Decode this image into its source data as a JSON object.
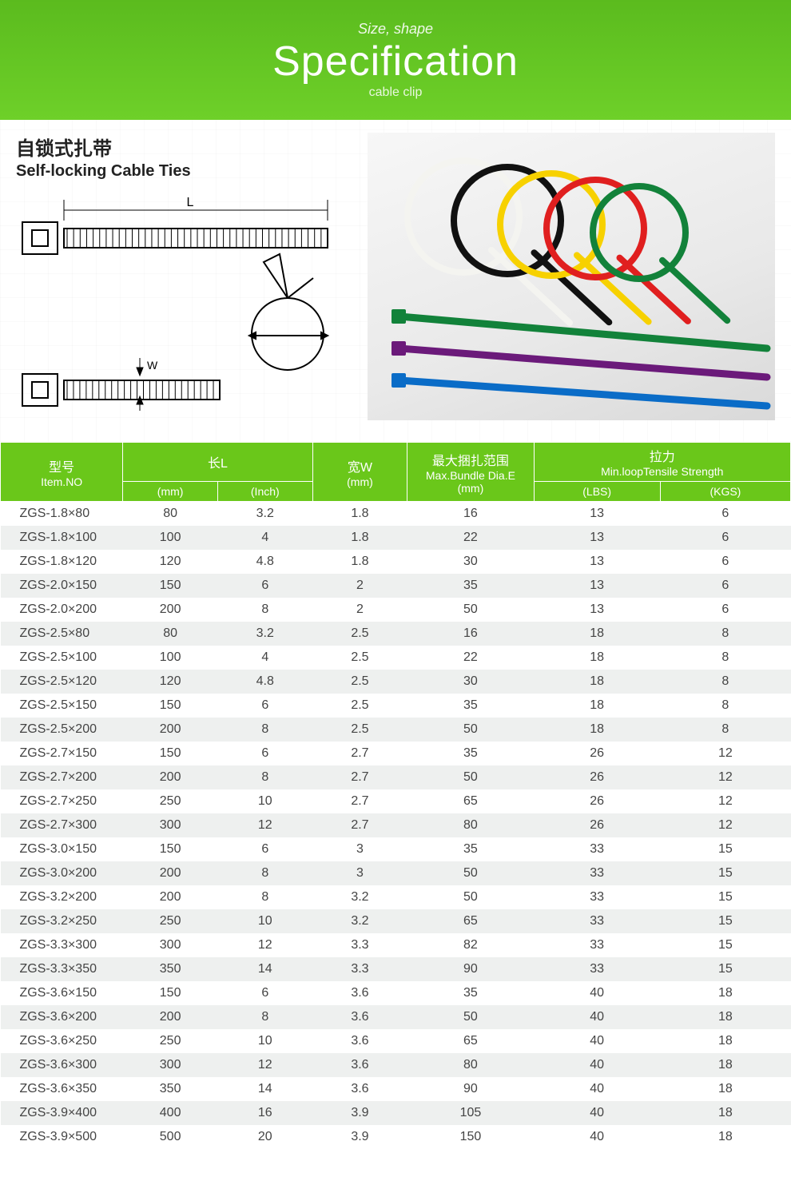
{
  "banner": {
    "eyebrow": "Size, shape",
    "title": "Specification",
    "sub": "cable clip",
    "bg_from": "#5bbb1e",
    "bg_to": "#6ed029",
    "text_color": "#ffffff"
  },
  "product": {
    "title_cn": "自锁式扎带",
    "title_en": "Self-locking Cable Ties",
    "diagram_labels": {
      "length": "L",
      "width": "W"
    },
    "photo_tie_colors": [
      "#f4f4f0",
      "#111111",
      "#f7d100",
      "#e01f1f",
      "#12823a",
      "#6b1a7a",
      "#0a6cc7"
    ]
  },
  "table": {
    "header_color": "#6ac71a",
    "header_text_color": "#ffffff",
    "row_alt_bg": "#eef0ef",
    "row_bg": "#ffffff",
    "text_color": "#444444",
    "font_size_pt": 12,
    "headers": {
      "item": {
        "cn": "型号",
        "en": "Item.NO"
      },
      "length": {
        "cn": "长L",
        "en": ""
      },
      "l_mm": {
        "cn": "",
        "en": "(mm)"
      },
      "l_inch": {
        "cn": "",
        "en": "(Inch)"
      },
      "width": {
        "cn": "宽W",
        "en": "(mm)"
      },
      "dia": {
        "cn": "最大捆扎范围",
        "en": "Max.Bundle Dia.E",
        "unit": "(mm)"
      },
      "tensile": {
        "cn": "拉力",
        "en": "Min.loopTensile Strength"
      },
      "lbs": {
        "cn": "",
        "en": "(LBS)"
      },
      "kgs": {
        "cn": "",
        "en": "(KGS)"
      }
    },
    "columns": [
      "item_no",
      "l_mm",
      "l_inch",
      "w_mm",
      "dia_mm",
      "lbs",
      "kgs"
    ],
    "rows": [
      [
        "ZGS-1.8×80",
        "80",
        "3.2",
        "1.8",
        "16",
        "13",
        "6"
      ],
      [
        "ZGS-1.8×100",
        "100",
        "4",
        "1.8",
        "22",
        "13",
        "6"
      ],
      [
        "ZGS-1.8×120",
        "120",
        "4.8",
        "1.8",
        "30",
        "13",
        "6"
      ],
      [
        "ZGS-2.0×150",
        "150",
        "6",
        "2",
        "35",
        "13",
        "6"
      ],
      [
        "ZGS-2.0×200",
        "200",
        "8",
        "2",
        "50",
        "13",
        "6"
      ],
      [
        "ZGS-2.5×80",
        "80",
        "3.2",
        "2.5",
        "16",
        "18",
        "8"
      ],
      [
        "ZGS-2.5×100",
        "100",
        "4",
        "2.5",
        "22",
        "18",
        "8"
      ],
      [
        "ZGS-2.5×120",
        "120",
        "4.8",
        "2.5",
        "30",
        "18",
        "8"
      ],
      [
        "ZGS-2.5×150",
        "150",
        "6",
        "2.5",
        "35",
        "18",
        "8"
      ],
      [
        "ZGS-2.5×200",
        "200",
        "8",
        "2.5",
        "50",
        "18",
        "8"
      ],
      [
        "ZGS-2.7×150",
        "150",
        "6",
        "2.7",
        "35",
        "26",
        "12"
      ],
      [
        "ZGS-2.7×200",
        "200",
        "8",
        "2.7",
        "50",
        "26",
        "12"
      ],
      [
        "ZGS-2.7×250",
        "250",
        "10",
        "2.7",
        "65",
        "26",
        "12"
      ],
      [
        "ZGS-2.7×300",
        "300",
        "12",
        "2.7",
        "80",
        "26",
        "12"
      ],
      [
        "ZGS-3.0×150",
        "150",
        "6",
        "3",
        "35",
        "33",
        "15"
      ],
      [
        "ZGS-3.0×200",
        "200",
        "8",
        "3",
        "50",
        "33",
        "15"
      ],
      [
        "ZGS-3.2×200",
        "200",
        "8",
        "3.2",
        "50",
        "33",
        "15"
      ],
      [
        "ZGS-3.2×250",
        "250",
        "10",
        "3.2",
        "65",
        "33",
        "15"
      ],
      [
        "ZGS-3.3×300",
        "300",
        "12",
        "3.3",
        "82",
        "33",
        "15"
      ],
      [
        "ZGS-3.3×350",
        "350",
        "14",
        "3.3",
        "90",
        "33",
        "15"
      ],
      [
        "ZGS-3.6×150",
        "150",
        "6",
        "3.6",
        "35",
        "40",
        "18"
      ],
      [
        "ZGS-3.6×200",
        "200",
        "8",
        "3.6",
        "50",
        "40",
        "18"
      ],
      [
        "ZGS-3.6×250",
        "250",
        "10",
        "3.6",
        "65",
        "40",
        "18"
      ],
      [
        "ZGS-3.6×300",
        "300",
        "12",
        "3.6",
        "80",
        "40",
        "18"
      ],
      [
        "ZGS-3.6×350",
        "350",
        "14",
        "3.6",
        "90",
        "40",
        "18"
      ],
      [
        "ZGS-3.9×400",
        "400",
        "16",
        "3.9",
        "105",
        "40",
        "18"
      ],
      [
        "ZGS-3.9×500",
        "500",
        "20",
        "3.9",
        "150",
        "40",
        "18"
      ]
    ]
  }
}
